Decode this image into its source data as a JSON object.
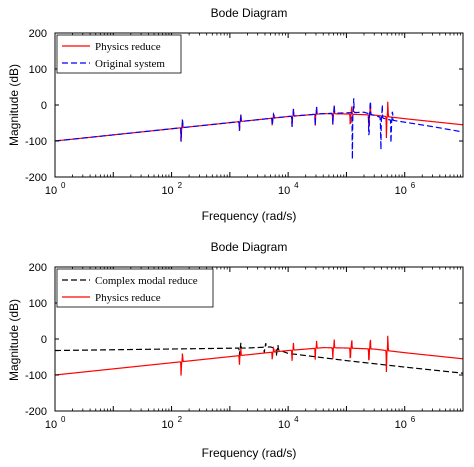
{
  "chart_data": [
    {
      "type": "line",
      "title": "Bode Diagram",
      "xlabel": "Frequency  (rad/s)",
      "ylabel": "Magnitude (dB)",
      "xscale": "log",
      "xlim": [
        1,
        10000000
      ],
      "ylim": [
        -200,
        200
      ],
      "x_ticks": [
        {
          "base": "10",
          "exp": "0"
        },
        {
          "base": "10",
          "exp": "2"
        },
        {
          "base": "10",
          "exp": "4"
        },
        {
          "base": "10",
          "exp": "6"
        }
      ],
      "y_ticks": [
        "200",
        "100",
        "0",
        "-100",
        "-200"
      ],
      "legend_position": "top-left",
      "grid": false,
      "series": [
        {
          "name": "Physics reduce",
          "color": "#ff0000",
          "dash": "solid",
          "base": [
            [
              1,
              -100
            ],
            [
              10000,
              -32
            ],
            [
              40000,
              -24
            ],
            [
              100000,
              -25
            ],
            [
              300000,
              -28
            ],
            [
              1000000,
              -38
            ],
            [
              10000000,
              -55
            ]
          ],
          "resonances": [
            [
              150,
              30,
              45
            ],
            [
              1500,
              20,
              28
            ],
            [
              5500,
              18,
              28
            ],
            [
              12000,
              20,
              30
            ],
            [
              30000,
              22,
              32
            ],
            [
              60000,
              24,
              34
            ],
            [
              120000,
              35,
              50
            ],
            [
              250000,
              42,
              58
            ],
            [
              500000,
              50,
              65
            ]
          ]
        },
        {
          "name": "Original system",
          "color": "#0000ff",
          "dash": "dashed",
          "base": [
            [
              1,
              -100
            ],
            [
              10000,
              -32
            ],
            [
              40000,
              -24
            ],
            [
              200000,
              -20
            ],
            [
              500000,
              -40
            ],
            [
              3000000,
              -60
            ],
            [
              10000000,
              -75
            ]
          ],
          "resonances": [
            [
              150,
              30,
              45
            ],
            [
              1500,
              20,
              28
            ],
            [
              5500,
              18,
              28
            ],
            [
              12000,
              20,
              30
            ],
            [
              30000,
              22,
              32
            ],
            [
              60000,
              24,
              34
            ],
            [
              130000,
              40,
              130
            ],
            [
              250000,
              60,
              110
            ],
            [
              400000,
              40,
              110
            ],
            [
              600000,
              40,
              90
            ]
          ]
        }
      ]
    },
    {
      "type": "line",
      "title": "Bode Diagram",
      "xlabel": "Frequency  (rad/s)",
      "ylabel": "Magnitude (dB)",
      "xscale": "log",
      "xlim": [
        1,
        10000000
      ],
      "ylim": [
        -200,
        200
      ],
      "x_ticks": [
        {
          "base": "10",
          "exp": "0"
        },
        {
          "base": "10",
          "exp": "2"
        },
        {
          "base": "10",
          "exp": "4"
        },
        {
          "base": "10",
          "exp": "6"
        }
      ],
      "y_ticks": [
        "200",
        "100",
        "0",
        "-100",
        "-200"
      ],
      "legend_position": "top-left",
      "grid": false,
      "series": [
        {
          "name": "Complex modal reduce",
          "color": "#000000",
          "dash": "dashed",
          "base": [
            [
              1,
              -32
            ],
            [
              2000,
              -25
            ],
            [
              5000,
              -22
            ],
            [
              10000,
              -40
            ],
            [
              100000,
              -60
            ],
            [
              1000000,
              -78
            ],
            [
              10000000,
              -95
            ]
          ],
          "resonances": [
            [
              1500,
              15,
              22
            ],
            [
              4000,
              15,
              25
            ],
            [
              6500,
              15,
              25
            ]
          ]
        },
        {
          "name": "Physics reduce",
          "color": "#ff0000",
          "dash": "solid",
          "base": [
            [
              1,
              -100
            ],
            [
              10000,
              -32
            ],
            [
              40000,
              -24
            ],
            [
              100000,
              -25
            ],
            [
              300000,
              -28
            ],
            [
              1000000,
              -38
            ],
            [
              10000000,
              -55
            ]
          ],
          "resonances": [
            [
              150,
              30,
              45
            ],
            [
              1500,
              20,
              28
            ],
            [
              5500,
              18,
              28
            ],
            [
              12000,
              20,
              30
            ],
            [
              30000,
              22,
              32
            ],
            [
              60000,
              24,
              34
            ],
            [
              120000,
              35,
              50
            ],
            [
              250000,
              42,
              58
            ],
            [
              500000,
              50,
              65
            ]
          ]
        }
      ]
    }
  ]
}
